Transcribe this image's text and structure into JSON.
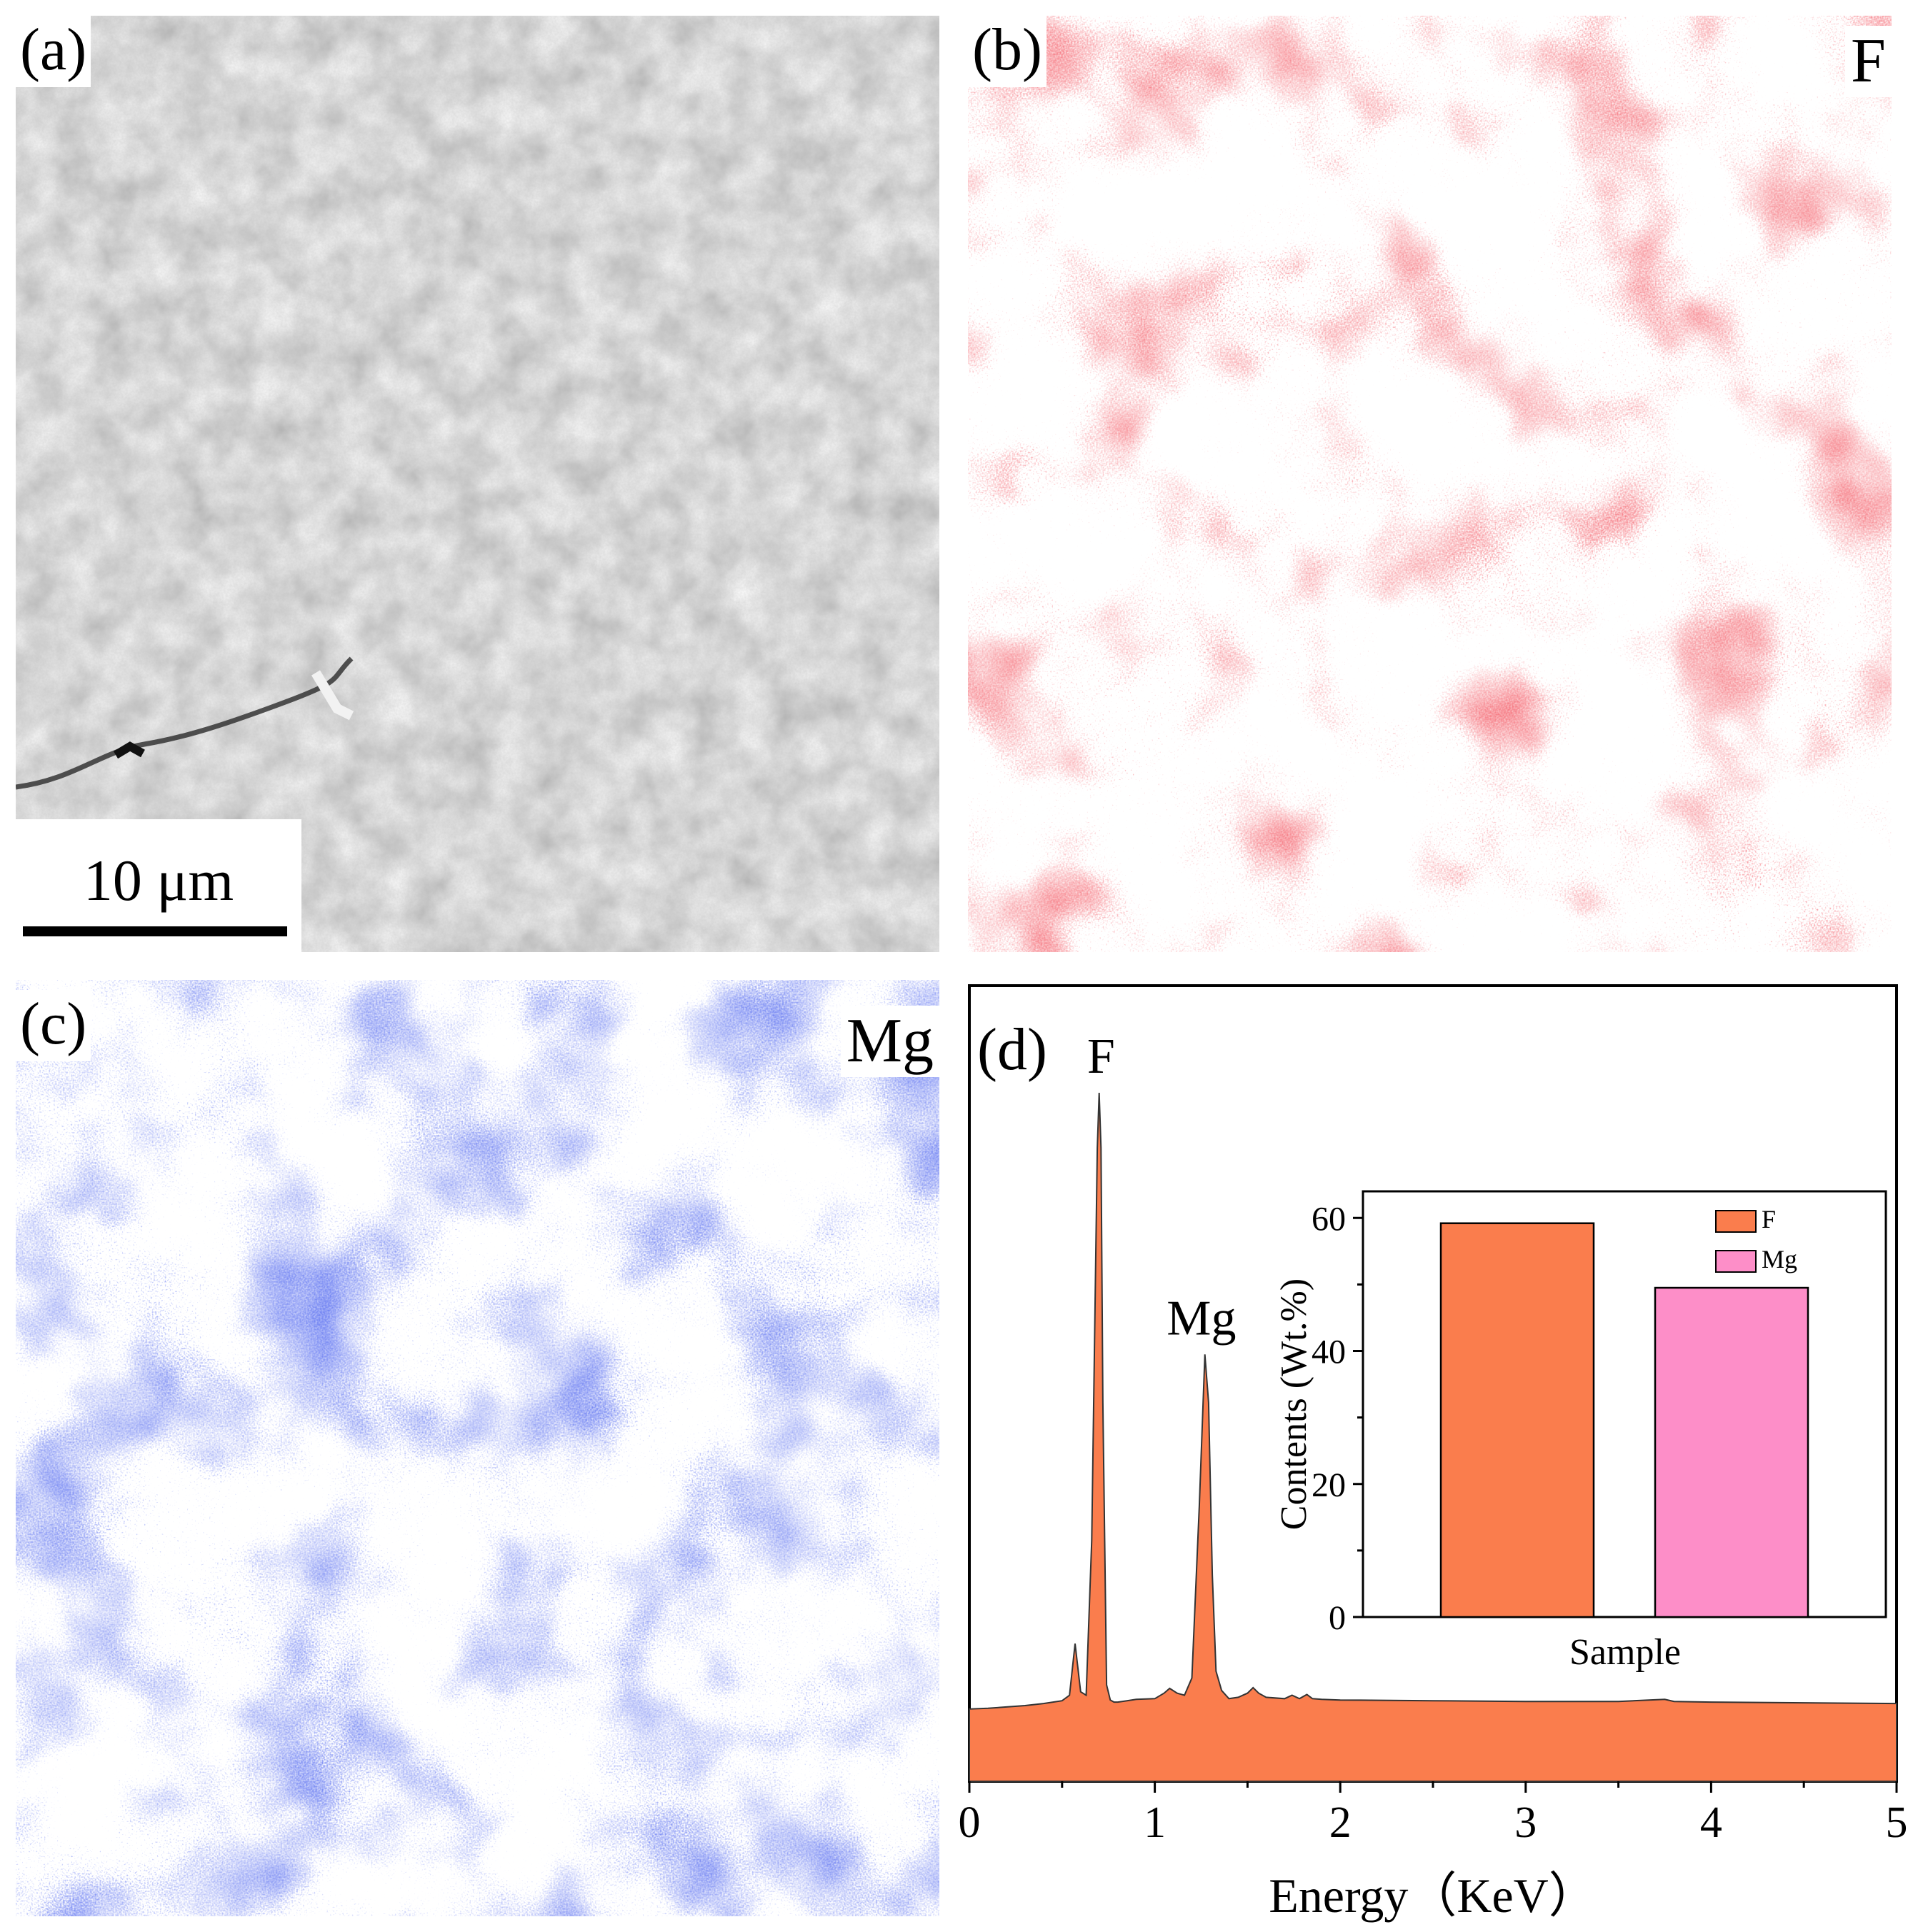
{
  "panels": {
    "a": {
      "label": "(a)",
      "scale_bar": "10 μm"
    },
    "b": {
      "label": "(b)",
      "element": "F",
      "color": "#e8202a"
    },
    "c": {
      "label": "(c)",
      "element": "Mg",
      "color": "#1f2fe0"
    },
    "d": {
      "label": "(d)"
    }
  },
  "colors": {
    "spectrum_fill": "#fa7d4d",
    "bar_F": "#fa7d4d",
    "bar_Mg": "#fd8ec8"
  },
  "chart_data": [
    {
      "type": "area",
      "title": "",
      "xlabel": "Energy（KeV）",
      "ylabel": "",
      "xlim": [
        0,
        5
      ],
      "ylim": [
        0,
        100
      ],
      "xticks": [
        "0",
        "1",
        "2",
        "3",
        "4",
        "5"
      ],
      "x": [
        0,
        0.1,
        0.2,
        0.3,
        0.4,
        0.5,
        0.54,
        0.57,
        0.6,
        0.63,
        0.66,
        0.69,
        0.7,
        0.71,
        0.72,
        0.74,
        0.76,
        0.78,
        0.8,
        0.85,
        0.9,
        1.0,
        1.05,
        1.08,
        1.12,
        1.16,
        1.2,
        1.24,
        1.27,
        1.29,
        1.31,
        1.33,
        1.36,
        1.4,
        1.45,
        1.5,
        1.53,
        1.56,
        1.6,
        1.7,
        1.74,
        1.78,
        1.82,
        1.85,
        1.9,
        2.0,
        2.5,
        3.0,
        3.5,
        3.75,
        3.8,
        4.0,
        4.5,
        5.0
      ],
      "values": [
        10.5,
        10.6,
        10.8,
        11.0,
        11.3,
        11.7,
        12.5,
        20.0,
        13.0,
        12.5,
        35.0,
        92.0,
        100.0,
        92.0,
        55.0,
        14.0,
        11.8,
        11.5,
        11.5,
        11.7,
        11.9,
        12.0,
        12.8,
        13.5,
        12.8,
        12.5,
        15.0,
        40.0,
        62.0,
        55.0,
        30.0,
        16.0,
        13.2,
        12.0,
        12.2,
        12.8,
        13.6,
        12.8,
        12.2,
        12.0,
        12.5,
        12.0,
        12.6,
        12.0,
        11.9,
        11.8,
        11.7,
        11.6,
        11.6,
        11.9,
        11.6,
        11.5,
        11.4,
        11.3
      ],
      "annotations": [
        {
          "text": "F",
          "x": 0.71,
          "y": 100
        },
        {
          "text": "Mg",
          "x": 1.29,
          "y": 62
        }
      ]
    },
    {
      "type": "bar",
      "title": "",
      "xlabel": "Sample",
      "ylabel": "Contents (Wt.%)",
      "ylim": [
        0,
        64
      ],
      "yticks": [
        0,
        20,
        40,
        60
      ],
      "categories": [
        "F",
        "Mg"
      ],
      "values": [
        59.2,
        49.5
      ],
      "legend": [
        "F",
        "Mg"
      ],
      "legend_position": "top-right"
    }
  ]
}
